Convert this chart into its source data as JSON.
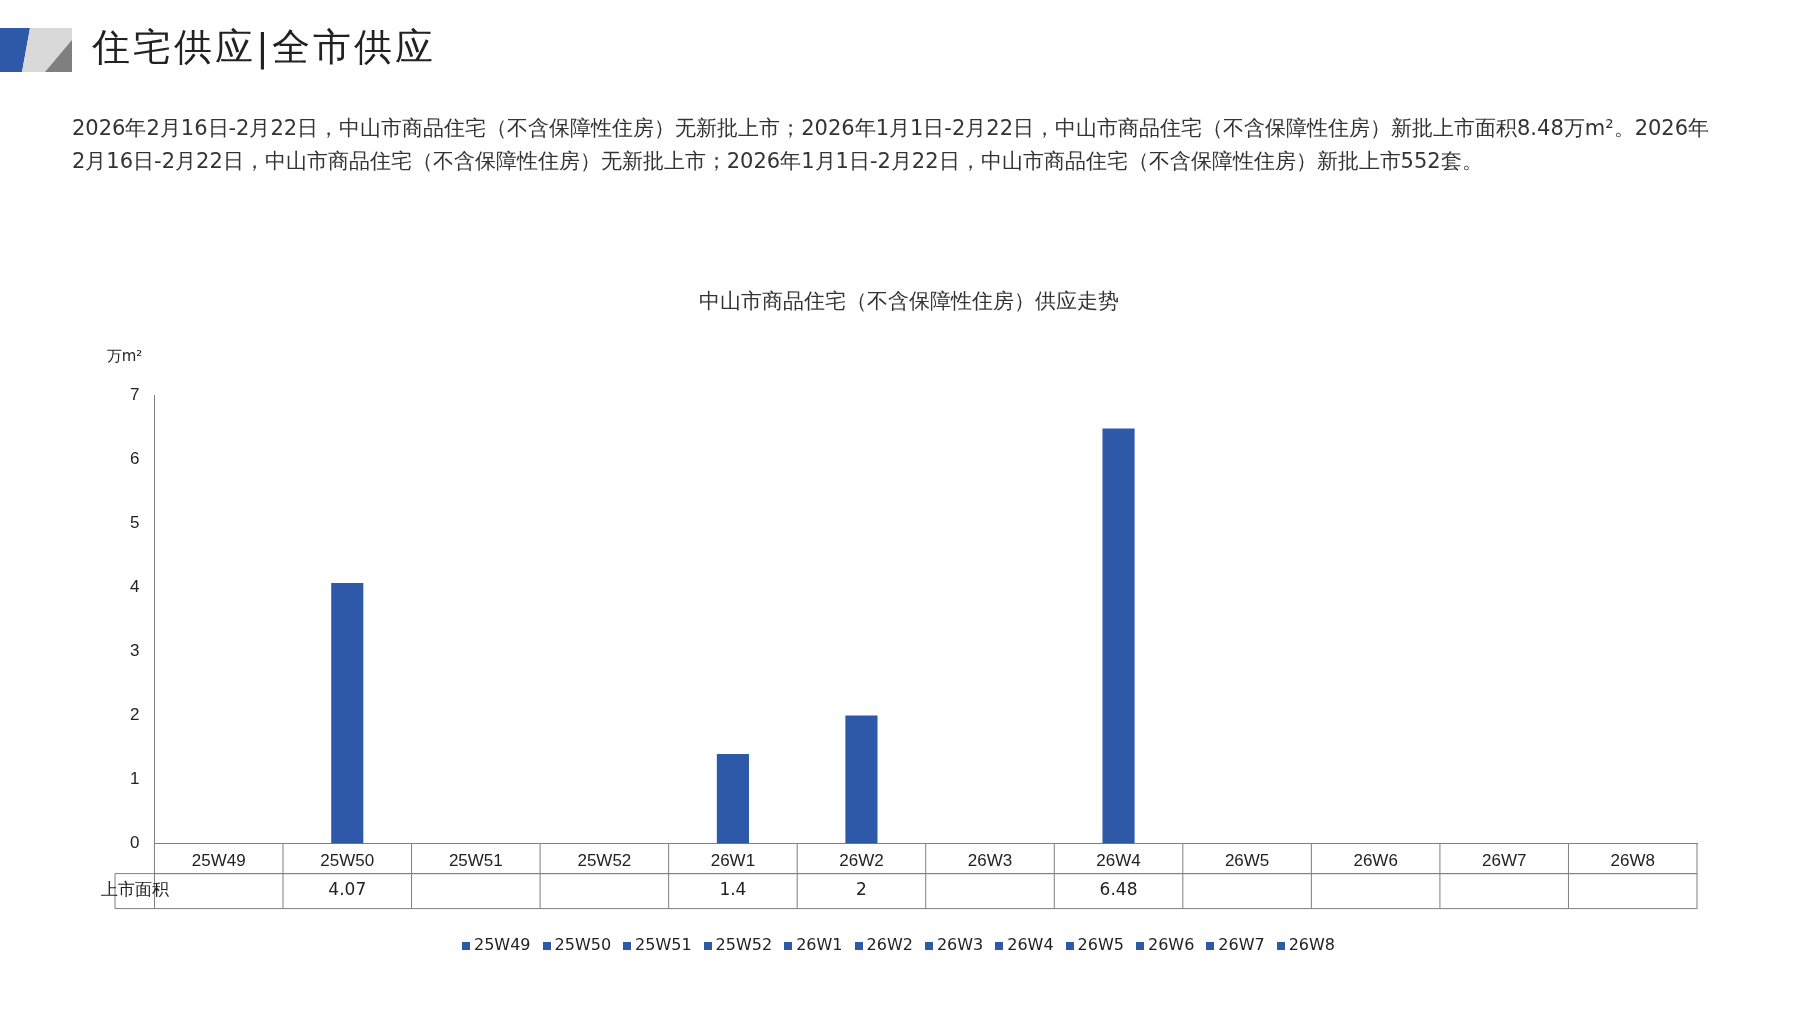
{
  "chart_data": {
    "type": "bar",
    "title": "中山市商品住宅（不含保障性住房）供应走势",
    "ylabel": "万m²",
    "annotations": [
      "住宅供应|全市供应",
      "2026年2月16日-2月22日，中山市商品住宅（不含保障性住房）无新批上市；2026年1月1日-2月22日，中山市商品住宅（不含保障性住房）新批上市面积8.48万m²。2026年2月16日-2月22日，中山市商品住宅（不含保障性住房）无新批上市；2026年1月1日-2月22日，中山市商品住宅（不含保障性住房）新批上市552套。"
    ],
    "categories": [
      "25W49",
      "25W50",
      "25W51",
      "25W52",
      "26W1",
      "26W2",
      "26W3",
      "26W4",
      "26W5",
      "26W6",
      "26W7",
      "26W8"
    ],
    "series": [
      {
        "name": "上市面积",
        "color": "#2e59a8",
        "values": [
          null,
          4.07,
          null,
          null,
          1.4,
          2,
          null,
          6.48,
          null,
          null,
          null,
          null
        ]
      }
    ],
    "ylim": [
      0,
      7
    ],
    "yticks": [
      0,
      1,
      2,
      3,
      4,
      5,
      6,
      7
    ],
    "data_labels": true,
    "grid": false,
    "legend": "bottom"
  }
}
